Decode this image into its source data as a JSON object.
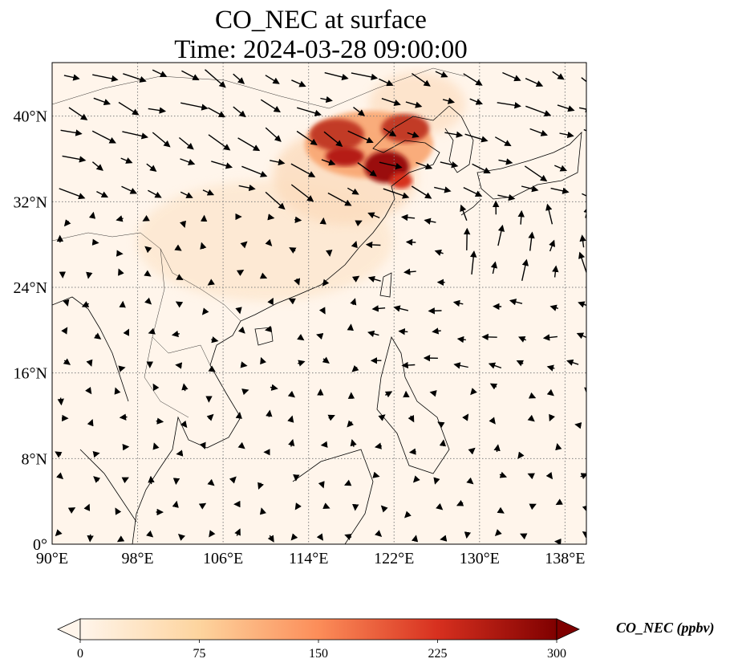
{
  "title": {
    "line1": "CO_NEC at surface",
    "line2": "Time: 2024-03-28 09:00:00"
  },
  "map": {
    "lon_range": [
      90,
      140
    ],
    "lat_range": [
      0,
      45
    ],
    "lon_ticks": [
      {
        "value": 90,
        "label": "90°E"
      },
      {
        "value": 98,
        "label": "98°E"
      },
      {
        "value": 106,
        "label": "106°E"
      },
      {
        "value": 114,
        "label": "114°E"
      },
      {
        "value": 122,
        "label": "122°E"
      },
      {
        "value": 130,
        "label": "130°E"
      },
      {
        "value": 138,
        "label": "138°E"
      }
    ],
    "lat_ticks": [
      {
        "value": 0,
        "label": "0°"
      },
      {
        "value": 8,
        "label": "8°N"
      },
      {
        "value": 16,
        "label": "16°N"
      },
      {
        "value": 24,
        "label": "24°N"
      },
      {
        "value": 32,
        "label": "32°N"
      },
      {
        "value": 40,
        "label": "40°N"
      }
    ],
    "gridlines": true,
    "gridline_style": "dotted",
    "background_color": "#fff5eb",
    "coastline_color": "#000000",
    "wind_vectors": true
  },
  "colorbar": {
    "label": "CO_NEC (ppbv)",
    "min": 0,
    "max": 300,
    "extend": "both",
    "cmap": "OrRd",
    "ticks": [
      {
        "value": 0,
        "label": "0"
      },
      {
        "value": 75,
        "label": "75"
      },
      {
        "value": 150,
        "label": "150"
      },
      {
        "value": 225,
        "label": "225"
      },
      {
        "value": 300,
        "label": "300"
      }
    ],
    "colors": [
      "#fff5eb",
      "#fdd49e",
      "#fc8d59",
      "#d7301f",
      "#7f0000"
    ]
  }
}
